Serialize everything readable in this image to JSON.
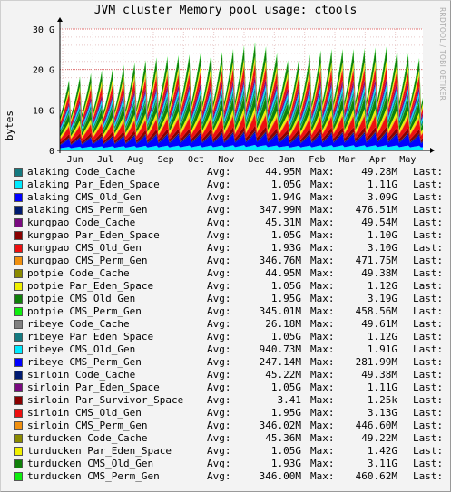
{
  "title": "JVM cluster Memory pool usage: ctools",
  "watermark": "RRDTOOL / TOBI OETIKER",
  "labels": {
    "avg": "Avg:",
    "max": "Max:",
    "last": "Last:"
  },
  "chart_data": {
    "type": "area",
    "stacked": true,
    "ylabel": "bytes",
    "y_ticks": [
      "0",
      "10 G",
      "20 G",
      "30 G"
    ],
    "y_tick_values": [
      0,
      10,
      20,
      30
    ],
    "ylim": [
      0,
      30
    ],
    "y_unit": "G",
    "x_ticks": [
      "Jun",
      "Jul",
      "Aug",
      "Sep",
      "Oct",
      "Nov",
      "Dec",
      "Jan",
      "Feb",
      "Mar",
      "Apr",
      "May"
    ],
    "grid": true,
    "legend_position": "bottom",
    "approx_total_envelope_G": [
      13,
      15,
      16.5,
      18,
      18.5,
      19,
      21,
      17,
      19.5,
      19.5,
      20,
      17.5
    ],
    "series": [
      {
        "name": "alaking Code_Cache",
        "color": "#157a80",
        "avg": "44.95M",
        "max": "49.28M",
        "avg_G": 0.045
      },
      {
        "name": "alaking Par_Eden_Space",
        "color": "#00eaff",
        "avg": "1.05G",
        "max": "1.11G",
        "avg_G": 1.05
      },
      {
        "name": "alaking CMS_Old_Gen",
        "color": "#0000ff",
        "avg": "1.94G",
        "max": "3.09G",
        "avg_G": 1.94
      },
      {
        "name": "alaking CMS_Perm_Gen",
        "color": "#001a70",
        "avg": "347.99M",
        "max": "476.51M",
        "avg_G": 0.348
      },
      {
        "name": "kungpao Code_Cache",
        "color": "#7a0a80",
        "avg": "45.31M",
        "max": "49.54M",
        "avg_G": 0.045
      },
      {
        "name": "kungpao Par_Eden_Space",
        "color": "#8a0000",
        "avg": "1.05G",
        "max": "1.10G",
        "avg_G": 1.05
      },
      {
        "name": "kungpao CMS_Old_Gen",
        "color": "#ee1010",
        "avg": "1.93G",
        "max": "3.10G",
        "avg_G": 1.93
      },
      {
        "name": "kungpao CMS_Perm_Gen",
        "color": "#f09010",
        "avg": "346.76M",
        "max": "471.75M",
        "avg_G": 0.347
      },
      {
        "name": "potpie Code_Cache",
        "color": "#8a8a00",
        "avg": "44.95M",
        "max": "49.38M",
        "avg_G": 0.045
      },
      {
        "name": "potpie Par_Eden_Space",
        "color": "#f0f000",
        "avg": "1.05G",
        "max": "1.12G",
        "avg_G": 1.05
      },
      {
        "name": "potpie CMS_Old_Gen",
        "color": "#10800a",
        "avg": "1.95G",
        "max": "3.19G",
        "avg_G": 1.95
      },
      {
        "name": "potpie CMS_Perm_Gen",
        "color": "#10ee10",
        "avg": "345.01M",
        "max": "458.56M",
        "avg_G": 0.345
      },
      {
        "name": "ribeye Code_Cache",
        "color": "#808080",
        "avg": "26.18M",
        "max": "49.61M",
        "avg_G": 0.026
      },
      {
        "name": "ribeye Par_Eden_Space",
        "color": "#157a80",
        "avg": "1.05G",
        "max": "1.12G",
        "avg_G": 1.05
      },
      {
        "name": "ribeye CMS_Old_Gen",
        "color": "#00eaff",
        "avg": "940.73M",
        "max": "1.91G",
        "avg_G": 0.941
      },
      {
        "name": "ribeye CMS_Perm_Gen",
        "color": "#0000ff",
        "avg": "247.14M",
        "max": "281.99M",
        "avg_G": 0.247
      },
      {
        "name": "sirloin Code_Cache",
        "color": "#001a70",
        "avg": "45.22M",
        "max": "49.38M",
        "avg_G": 0.045
      },
      {
        "name": "sirloin Par_Eden_Space",
        "color": "#7a0a80",
        "avg": "1.05G",
        "max": "1.11G",
        "avg_G": 1.05
      },
      {
        "name": "sirloin Par_Survivor_Space",
        "color": "#8a0000",
        "avg": "3.41",
        "max": "1.25k",
        "avg_G": 0
      },
      {
        "name": "sirloin CMS_Old_Gen",
        "color": "#ee1010",
        "avg": "1.95G",
        "max": "3.13G",
        "avg_G": 1.95
      },
      {
        "name": "sirloin CMS_Perm_Gen",
        "color": "#f09010",
        "avg": "346.02M",
        "max": "446.60M",
        "avg_G": 0.346
      },
      {
        "name": "turducken Code_Cache",
        "color": "#8a8a00",
        "avg": "45.36M",
        "max": "49.22M",
        "avg_G": 0.045
      },
      {
        "name": "turducken Par_Eden_Space",
        "color": "#f0f000",
        "avg": "1.05G",
        "max": "1.42G",
        "avg_G": 1.05
      },
      {
        "name": "turducken CMS_Old_Gen",
        "color": "#10800a",
        "avg": "1.93G",
        "max": "3.11G",
        "avg_G": 1.93
      },
      {
        "name": "turducken CMS_Perm_Gen",
        "color": "#10ee10",
        "avg": "346.00M",
        "max": "460.62M",
        "avg_G": 0.346
      }
    ]
  }
}
